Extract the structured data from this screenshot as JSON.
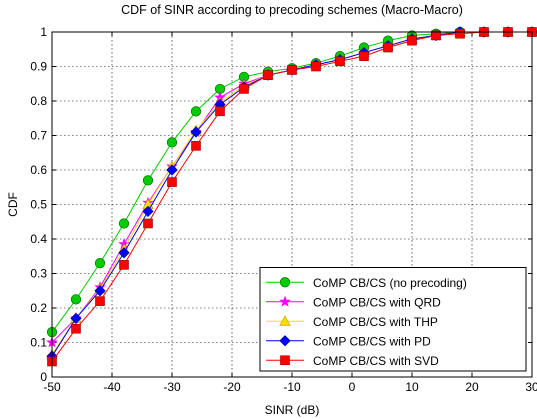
{
  "chart_data": {
    "type": "line",
    "title": "CDF of SINR according to precoding schemes (Macro-Macro)",
    "xlabel": "SINR (dB)",
    "ylabel": "CDF",
    "xlim": [
      -50,
      30
    ],
    "ylim": [
      0,
      1
    ],
    "xticks": [
      "-50",
      "-40",
      "-30",
      "-20",
      "-10",
      "0",
      "10",
      "20",
      "30"
    ],
    "yticks": [
      "0",
      "0.1",
      "0.2",
      "0.3",
      "0.4",
      "0.5",
      "0.6",
      "0.7",
      "0.8",
      "0.9",
      "1"
    ],
    "grid": true,
    "legend_position": "bottom-right",
    "series": [
      {
        "name": "CoMP CB/CS (no precoding)",
        "color": "#00cc00",
        "marker": "circle",
        "x": [
          -50,
          -46,
          -42,
          -38,
          -34,
          -30,
          -26,
          -22,
          -18,
          -14,
          -10,
          -6,
          -2,
          2,
          6,
          10,
          14,
          18,
          22,
          26,
          30
        ],
        "y": [
          0.13,
          0.225,
          0.33,
          0.445,
          0.57,
          0.68,
          0.77,
          0.835,
          0.87,
          0.885,
          0.895,
          0.91,
          0.93,
          0.955,
          0.975,
          0.99,
          0.995,
          1.0,
          1.0,
          1.0,
          1.0
        ]
      },
      {
        "name": "CoMP CB/CS with QRD",
        "color": "#ff00ff",
        "marker": "star",
        "x": [
          -50,
          -46,
          -42,
          -38,
          -34,
          -30,
          -26,
          -22,
          -18,
          -14,
          -10,
          -6,
          -2,
          2,
          6,
          10,
          14,
          18,
          22,
          26,
          30
        ],
        "y": [
          0.1,
          0.17,
          0.26,
          0.385,
          0.505,
          0.61,
          0.71,
          0.81,
          0.85,
          0.875,
          0.89,
          0.905,
          0.92,
          0.94,
          0.96,
          0.98,
          0.99,
          1.0,
          1.0,
          1.0,
          1.0
        ]
      },
      {
        "name": "CoMP CB/CS with THP",
        "color": "#ffdd00",
        "marker": "triangle",
        "x": [
          -50,
          -46,
          -42,
          -38,
          -34,
          -30,
          -26,
          -22,
          -18,
          -14,
          -10,
          -6,
          -2,
          2,
          6,
          10,
          14,
          18,
          22,
          26,
          30
        ],
        "y": [
          0.065,
          0.17,
          0.255,
          0.37,
          0.5,
          0.61,
          0.715,
          0.795,
          0.845,
          0.875,
          0.89,
          0.905,
          0.92,
          0.94,
          0.96,
          0.98,
          0.99,
          1.0,
          1.0,
          1.0,
          1.0
        ]
      },
      {
        "name": "CoMP CB/CS with PD",
        "color": "#0000ff",
        "marker": "diamond",
        "x": [
          -50,
          -46,
          -42,
          -38,
          -34,
          -30,
          -26,
          -22,
          -18,
          -14,
          -10,
          -6,
          -2,
          2,
          6,
          10,
          14,
          18,
          22,
          26,
          30
        ],
        "y": [
          0.06,
          0.17,
          0.25,
          0.36,
          0.48,
          0.6,
          0.71,
          0.79,
          0.84,
          0.875,
          0.89,
          0.905,
          0.92,
          0.94,
          0.96,
          0.98,
          0.99,
          1.0,
          1.0,
          1.0,
          1.0
        ]
      },
      {
        "name": "CoMP CB/CS with SVD",
        "color": "#ff0000",
        "marker": "square",
        "x": [
          -50,
          -46,
          -42,
          -38,
          -34,
          -30,
          -26,
          -22,
          -18,
          -14,
          -10,
          -6,
          -2,
          2,
          6,
          10,
          14,
          18,
          22,
          26,
          30
        ],
        "y": [
          0.045,
          0.14,
          0.22,
          0.325,
          0.445,
          0.565,
          0.67,
          0.77,
          0.835,
          0.875,
          0.89,
          0.9,
          0.915,
          0.93,
          0.955,
          0.975,
          0.99,
          0.995,
          1.0,
          1.0,
          1.0
        ]
      }
    ]
  }
}
